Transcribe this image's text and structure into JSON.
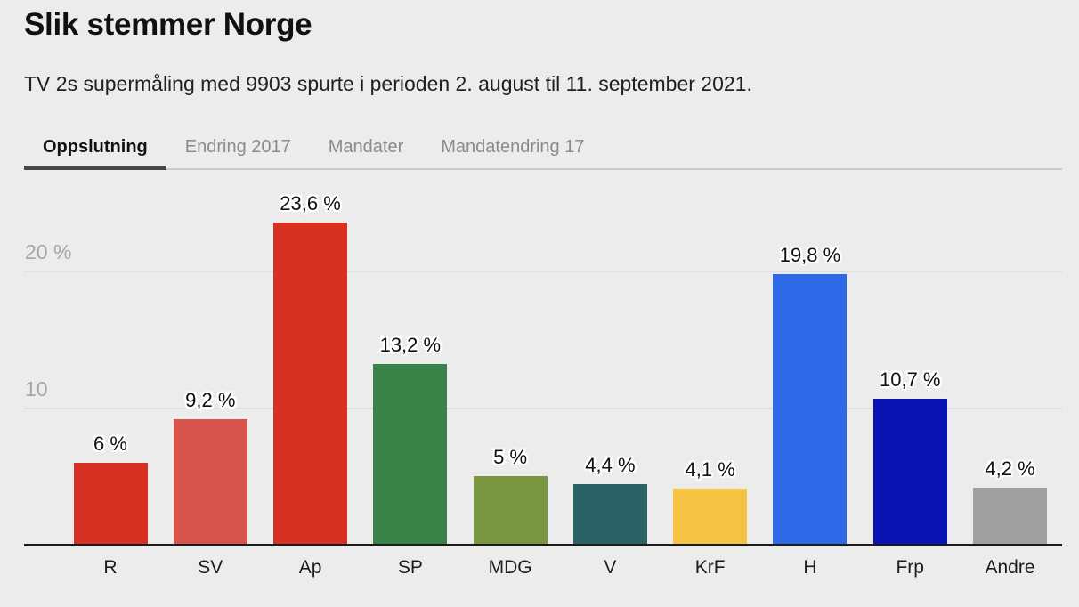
{
  "header": {
    "title": "Slik stemmer Norge",
    "subtitle": "TV 2s supermåling med 9903 spurte i perioden 2. august til 11. september 2021."
  },
  "tabs": [
    {
      "label": "Oppslutning",
      "active": true
    },
    {
      "label": "Endring 2017",
      "active": false
    },
    {
      "label": "Mandater",
      "active": false
    },
    {
      "label": "Mandatendring 17",
      "active": false
    }
  ],
  "chart_data": {
    "type": "bar",
    "title": "Oppslutning",
    "categories": [
      "R",
      "SV",
      "Ap",
      "SP",
      "MDG",
      "V",
      "KrF",
      "H",
      "Frp",
      "Andre"
    ],
    "values": [
      6,
      9.2,
      23.6,
      13.2,
      5,
      4.4,
      4.1,
      19.8,
      10.7,
      4.2
    ],
    "value_labels": [
      "6 %",
      "9,2 %",
      "23,6 %",
      "13,2 %",
      "5 %",
      "4,4 %",
      "4,1 %",
      "19,8 %",
      "10,7 %",
      "4,2 %"
    ],
    "bar_colors": [
      "#d63122",
      "#d7544d",
      "#d63122",
      "#3a8348",
      "#7a9540",
      "#2b6266",
      "#f6c244",
      "#2e6ae8",
      "#0a14b4",
      "#a0a0a0"
    ],
    "xlabel": "",
    "ylabel": "",
    "ylim": [
      0,
      26
    ],
    "yticks": [
      {
        "value": 10,
        "label": "10"
      },
      {
        "value": 20,
        "label": "20 %"
      }
    ],
    "grid": true,
    "legend": false,
    "colors": {
      "background": "#ececec",
      "gridline": "#dedede",
      "axis_line": "#1a1a1a",
      "tick_text": "#a6a6a6",
      "active_tab_underline": "#474747",
      "tab_divider": "#cdcdcd"
    }
  }
}
